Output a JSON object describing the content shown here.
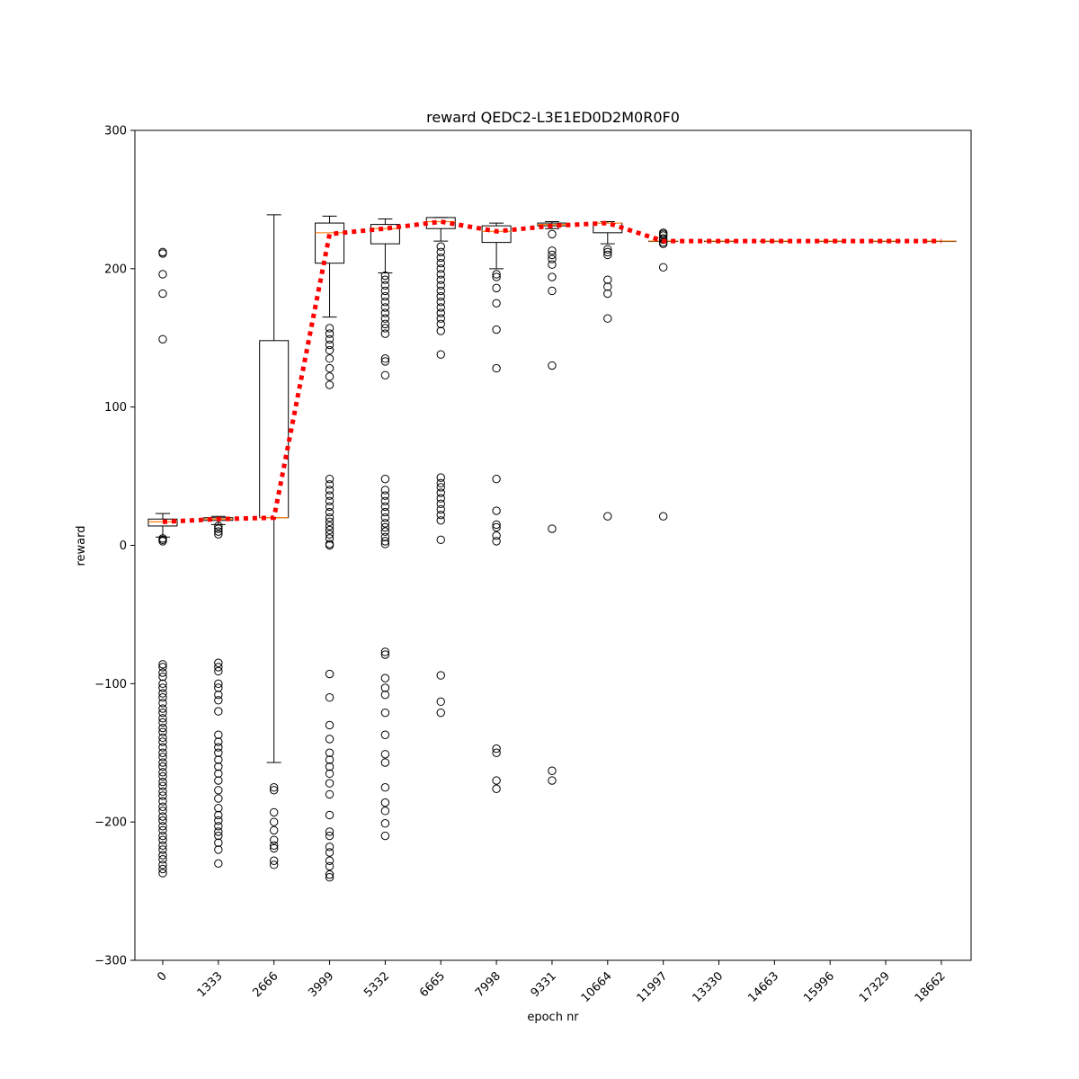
{
  "chart_data": {
    "type": "box",
    "title": "reward QEDC2-L3E1ED0D2M0R0F0",
    "xlabel": "epoch nr",
    "ylabel": "reward",
    "ylim": [
      -300,
      300
    ],
    "yticks": [
      -300,
      -200,
      -100,
      0,
      100,
      200,
      300
    ],
    "categories": [
      "0",
      "1333",
      "2666",
      "3999",
      "5332",
      "6665",
      "7998",
      "9331",
      "10664",
      "11997",
      "13330",
      "14663",
      "15996",
      "17329",
      "18662"
    ],
    "boxes": [
      {
        "whisker_low": 6,
        "q1": 14,
        "median": 17,
        "q3": 19,
        "whisker_high": 23,
        "mean": 17,
        "outliers": [
          3,
          4,
          5,
          149,
          182,
          196,
          211,
          212,
          -86,
          -88,
          -92,
          -95,
          -100,
          -103,
          -107,
          -110,
          -114,
          -118,
          -121,
          -125,
          -128,
          -132,
          -135,
          -139,
          -142,
          -146,
          -150,
          -153,
          -157,
          -160,
          -164,
          -167,
          -171,
          -174,
          -178,
          -181,
          -185,
          -189,
          -192,
          -196,
          -199,
          -203,
          -206,
          -210,
          -213,
          -217,
          -220,
          -224,
          -227,
          -231,
          -234,
          -237
        ]
      },
      {
        "whisker_low": 15,
        "q1": 18,
        "median": 19,
        "q3": 20,
        "whisker_high": 21,
        "mean": 19,
        "outliers": [
          8,
          10,
          12,
          14,
          -85,
          -88,
          -91,
          -100,
          -103,
          -108,
          -112,
          -120,
          -137,
          -142,
          -146,
          -150,
          -155,
          -160,
          -165,
          -170,
          -177,
          -183,
          -190,
          -195,
          -199,
          -203,
          -207,
          -210,
          -215,
          -220,
          -230
        ]
      },
      {
        "whisker_low": -157,
        "q1": 20,
        "median": 20,
        "q3": 148,
        "whisker_high": 239,
        "mean": 20,
        "outliers": [
          -175,
          -177,
          -193,
          -200,
          -206,
          -213,
          -217,
          -219,
          -228,
          -231
        ]
      },
      {
        "whisker_low": 165,
        "q1": 204,
        "median": 226,
        "q3": 233,
        "whisker_high": 238,
        "mean": 225,
        "outliers": [
          116,
          122,
          128,
          135,
          141,
          145,
          149,
          153,
          157,
          0,
          1,
          5,
          8,
          11,
          14,
          17,
          20,
          24,
          28,
          32,
          36,
          40,
          44,
          48,
          -93,
          -110,
          -130,
          -140,
          -150,
          -155,
          -160,
          -165,
          -172,
          -180,
          -195,
          -207,
          -210,
          -218,
          -222,
          -228,
          -232,
          -238,
          -240
        ]
      },
      {
        "whisker_low": 197,
        "q1": 218,
        "median": 229,
        "q3": 232,
        "whisker_high": 236,
        "mean": 229,
        "outliers": [
          123,
          133,
          135,
          153,
          157,
          160,
          164,
          168,
          172,
          176,
          180,
          184,
          188,
          192,
          195,
          1,
          3,
          6,
          10,
          13,
          16,
          20,
          24,
          28,
          32,
          36,
          40,
          48,
          -77,
          -79,
          -96,
          -103,
          -108,
          -121,
          -137,
          -151,
          -157,
          -175,
          -186,
          -192,
          -201,
          -210
        ]
      },
      {
        "whisker_low": 220,
        "q1": 229,
        "median": 234,
        "q3": 237,
        "whisker_high": 237,
        "mean": 234,
        "outliers": [
          138,
          155,
          160,
          164,
          168,
          172,
          176,
          180,
          184,
          188,
          192,
          196,
          200,
          204,
          208,
          212,
          216,
          4,
          18,
          22,
          26,
          30,
          34,
          38,
          42,
          45,
          49,
          -94,
          -113,
          -121
        ]
      },
      {
        "whisker_low": 200,
        "q1": 219,
        "median": 227,
        "q3": 231,
        "whisker_high": 233,
        "mean": 227,
        "outliers": [
          128,
          156,
          175,
          186,
          194,
          196,
          3,
          7,
          13,
          15,
          25,
          48,
          -147,
          -150,
          -170,
          -176
        ]
      },
      {
        "whisker_low": 229,
        "q1": 231,
        "median": 232,
        "q3": 233,
        "whisker_high": 234,
        "mean": 231,
        "outliers": [
          130,
          184,
          194,
          203,
          207,
          210,
          213,
          225,
          12,
          -163,
          -170
        ]
      },
      {
        "whisker_low": 218,
        "q1": 226,
        "median": 233,
        "q3": 233,
        "whisker_high": 234,
        "mean": 233,
        "outliers": [
          164,
          182,
          187,
          192,
          210,
          212,
          214,
          21
        ]
      },
      {
        "whisker_low": 220,
        "q1": 220,
        "median": 220,
        "q3": 220,
        "whisker_high": 220,
        "mean": 220,
        "outliers": [
          201,
          218,
          219,
          221,
          222,
          224,
          225,
          226,
          21
        ]
      },
      {
        "whisker_low": 220,
        "q1": 220,
        "median": 220,
        "q3": 220,
        "whisker_high": 220,
        "mean": 220,
        "outliers": []
      },
      {
        "whisker_low": 220,
        "q1": 220,
        "median": 220,
        "q3": 220,
        "whisker_high": 220,
        "mean": 220,
        "outliers": []
      },
      {
        "whisker_low": 220,
        "q1": 220,
        "median": 220,
        "q3": 220,
        "whisker_high": 220,
        "mean": 220,
        "outliers": []
      },
      {
        "whisker_low": 220,
        "q1": 220,
        "median": 220,
        "q3": 220,
        "whisker_high": 220,
        "mean": 220,
        "outliers": []
      },
      {
        "whisker_low": 220,
        "q1": 220,
        "median": 220,
        "q3": 220,
        "whisker_high": 220,
        "mean": 220,
        "outliers": []
      }
    ],
    "colors": {
      "box_edge": "#000000",
      "median": "#ff7f0e",
      "mean_line": "#ff0000",
      "outlier": "#000000"
    },
    "grid": false,
    "legend": "none"
  }
}
